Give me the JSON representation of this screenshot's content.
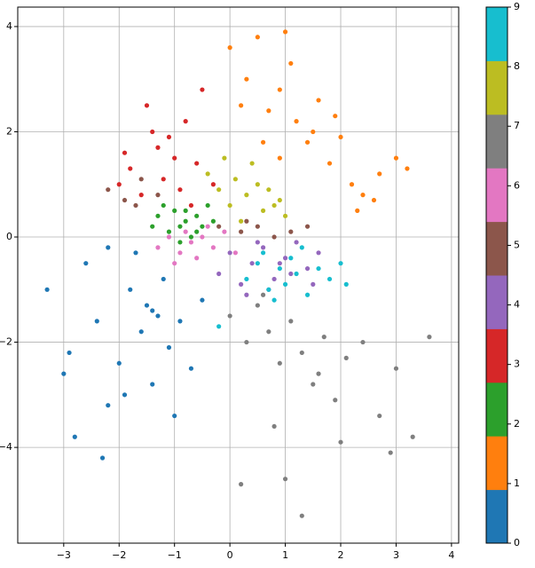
{
  "chart_data": {
    "type": "scatter",
    "xlim": [
      -3.83,
      4.13
    ],
    "ylim": [
      -5.82,
      4.37
    ],
    "xticks": [
      {
        "value": -3,
        "label": "−3"
      },
      {
        "value": -2,
        "label": "−2"
      },
      {
        "value": -1,
        "label": "−1"
      },
      0,
      1,
      2,
      3,
      4
    ],
    "yticks": [
      {
        "value": -4,
        "label": "−4"
      },
      {
        "value": -2,
        "label": "−2"
      },
      0,
      2,
      4
    ],
    "grid": true,
    "colorbar": {
      "lim": [
        0,
        9
      ],
      "ticks": [
        0,
        1,
        2,
        3,
        4,
        5,
        6,
        7,
        8,
        9
      ],
      "colors": [
        "#1f77b4",
        "#ff7f0e",
        "#2ca02c",
        "#d62728",
        "#9467bd",
        "#8c564b",
        "#e377c2",
        "#7f7f7f",
        "#bcbd22",
        "#17becf"
      ]
    },
    "series": [
      {
        "color": "#1f77b4",
        "x": [
          -3.3,
          -2.9,
          -2.6,
          -2.4,
          -2.2,
          -2.0,
          -1.8,
          -1.6,
          -1.5,
          -1.4,
          -1.3,
          -1.2,
          -1.1,
          -0.9,
          -0.7,
          -0.5,
          -2.8,
          -2.3,
          -1.9,
          -1.7,
          -2.2,
          -1.0,
          -3.0,
          -1.4
        ],
        "y": [
          -1.0,
          -2.2,
          -0.5,
          -1.6,
          -3.2,
          -2.4,
          -1.0,
          -1.8,
          -1.3,
          -2.8,
          -1.5,
          -0.8,
          -2.1,
          -1.6,
          -2.5,
          -1.2,
          -3.8,
          -4.2,
          -3.0,
          -0.3,
          -0.2,
          -3.4,
          -2.6,
          -1.4
        ]
      },
      {
        "color": "#ff7f0e",
        "x": [
          0.0,
          0.3,
          0.5,
          0.7,
          0.9,
          1.0,
          1.2,
          1.4,
          1.6,
          1.8,
          2.0,
          2.2,
          2.4,
          2.7,
          3.0,
          3.2,
          0.6,
          1.1,
          1.5,
          2.3,
          0.2,
          1.9,
          2.6,
          0.9
        ],
        "y": [
          3.6,
          3.0,
          3.8,
          2.4,
          2.8,
          3.9,
          2.2,
          1.8,
          2.6,
          1.4,
          1.9,
          1.0,
          0.8,
          1.2,
          1.5,
          1.3,
          1.8,
          3.3,
          2.0,
          0.5,
          2.5,
          2.3,
          0.7,
          1.5
        ]
      },
      {
        "color": "#2ca02c",
        "x": [
          -1.3,
          -1.1,
          -1.0,
          -0.9,
          -0.8,
          -0.7,
          -0.6,
          -0.5,
          -0.4,
          -1.2,
          -0.9,
          -0.6,
          -0.3,
          -1.4,
          -0.8
        ],
        "y": [
          0.4,
          0.1,
          0.5,
          0.2,
          0.3,
          0.0,
          0.4,
          0.2,
          0.6,
          0.6,
          -0.1,
          0.1,
          0.3,
          0.2,
          0.5
        ]
      },
      {
        "color": "#d62728",
        "x": [
          -2.0,
          -1.8,
          -1.6,
          -1.5,
          -1.3,
          -1.2,
          -1.0,
          -0.9,
          -0.8,
          -0.6,
          -0.5,
          -0.3,
          -1.4,
          -1.1,
          -0.7,
          -1.9
        ],
        "y": [
          1.0,
          1.3,
          0.8,
          2.5,
          1.7,
          1.1,
          1.5,
          0.9,
          2.2,
          1.4,
          2.8,
          1.0,
          2.0,
          1.9,
          0.6,
          1.6
        ]
      },
      {
        "color": "#9467bd",
        "x": [
          -0.2,
          0.0,
          0.2,
          0.4,
          0.6,
          0.8,
          1.0,
          1.2,
          1.4,
          1.6,
          0.3,
          0.7,
          1.1,
          1.5,
          0.5,
          0.9
        ],
        "y": [
          -0.7,
          -0.3,
          -0.9,
          -0.5,
          -0.2,
          -0.8,
          -0.4,
          -0.1,
          -0.6,
          -0.3,
          -1.1,
          -1.0,
          -0.7,
          -0.9,
          -0.1,
          -0.5
        ]
      },
      {
        "color": "#8c564b",
        "x": [
          -2.2,
          -1.9,
          -1.6,
          -1.3,
          -0.2,
          0.2,
          0.5,
          0.8,
          1.1,
          1.4,
          -1.7,
          0.3
        ],
        "y": [
          0.9,
          0.7,
          1.1,
          0.8,
          0.2,
          0.1,
          0.2,
          0.0,
          0.1,
          0.2,
          0.6,
          0.3
        ]
      },
      {
        "color": "#e377c2",
        "x": [
          -1.3,
          -1.1,
          -0.9,
          -0.7,
          -0.5,
          -0.3,
          -0.1,
          -0.6,
          -0.4,
          -0.8,
          -1.0,
          0.1
        ],
        "y": [
          -0.2,
          0.0,
          -0.3,
          -0.1,
          0.0,
          -0.2,
          0.1,
          -0.4,
          0.2,
          0.1,
          -0.5,
          -0.3
        ]
      },
      {
        "color": "#7f7f7f",
        "x": [
          0.0,
          0.3,
          0.5,
          0.7,
          0.9,
          1.1,
          1.3,
          1.5,
          1.7,
          1.9,
          2.1,
          2.4,
          2.7,
          3.0,
          3.3,
          3.6,
          0.2,
          0.8,
          1.0,
          1.3,
          2.0,
          2.9,
          0.6,
          1.6
        ],
        "y": [
          -1.5,
          -2.0,
          -1.3,
          -1.8,
          -2.4,
          -1.6,
          -2.2,
          -2.8,
          -1.9,
          -3.1,
          -2.3,
          -2.0,
          -3.4,
          -2.5,
          -3.8,
          -1.9,
          -4.7,
          -3.6,
          -4.6,
          -5.3,
          -3.9,
          -4.1,
          -1.1,
          -2.6
        ]
      },
      {
        "color": "#bcbd22",
        "x": [
          -0.4,
          -0.2,
          0.0,
          0.1,
          0.3,
          0.4,
          0.6,
          0.7,
          0.9,
          1.0,
          -0.1,
          0.5,
          0.2,
          0.8
        ],
        "y": [
          1.2,
          0.9,
          0.6,
          1.1,
          0.8,
          1.4,
          0.5,
          0.9,
          0.7,
          0.4,
          1.5,
          1.0,
          0.3,
          0.6
        ]
      },
      {
        "color": "#17becf",
        "x": [
          0.3,
          0.5,
          0.7,
          0.9,
          1.0,
          1.1,
          1.2,
          1.4,
          1.6,
          1.8,
          2.0,
          0.6,
          0.8,
          1.3,
          -0.2,
          2.1
        ],
        "y": [
          -0.8,
          -0.5,
          -1.0,
          -0.6,
          -0.9,
          -0.4,
          -0.7,
          -1.1,
          -0.6,
          -0.8,
          -0.5,
          -0.3,
          -1.2,
          -0.2,
          -1.7,
          -0.9
        ]
      }
    ]
  }
}
